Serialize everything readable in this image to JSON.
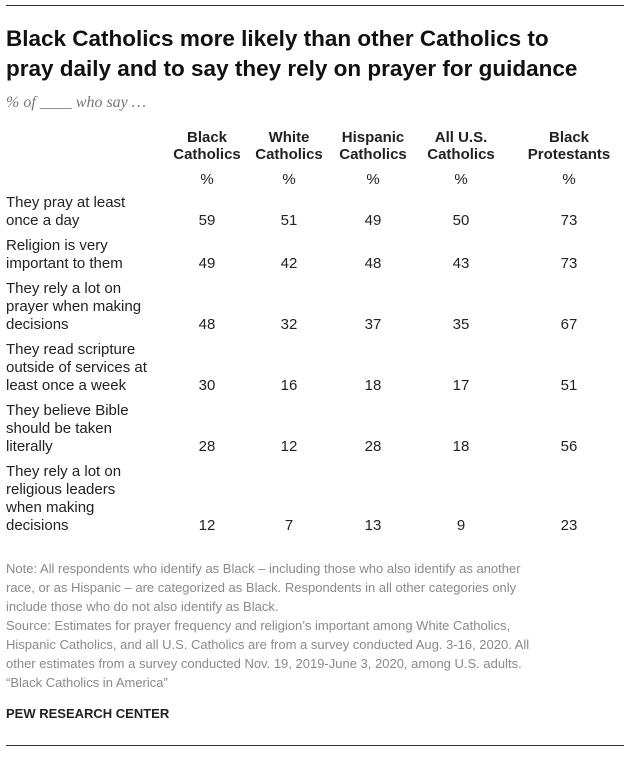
{
  "header": {
    "title": [
      "Black Catholics more likely than other Catholics to",
      "pray daily and to say they rely on prayer for guidance"
    ],
    "subtitle": "% of ____ who say …"
  },
  "table": {
    "columns": [
      [
        "Black",
        "Catholics"
      ],
      [
        "White",
        "Catholics"
      ],
      [
        "Hispanic",
        "Catholics"
      ],
      [
        "All U.S.",
        "Catholics"
      ],
      [
        "Black",
        "Protestants"
      ]
    ],
    "units": [
      "%",
      "%",
      "%",
      "%",
      "%"
    ],
    "rows": [
      {
        "label": [
          "They pray at least",
          "once a day"
        ],
        "values": [
          59,
          51,
          49,
          50,
          73
        ]
      },
      {
        "label": [
          "Religion is very",
          "important to them"
        ],
        "values": [
          49,
          42,
          48,
          43,
          73
        ]
      },
      {
        "label": [
          "They rely a lot on",
          "prayer when making",
          "decisions"
        ],
        "values": [
          48,
          32,
          37,
          35,
          67
        ]
      },
      {
        "label": [
          "They read scripture",
          "outside of services at",
          "least once a week"
        ],
        "values": [
          30,
          16,
          18,
          17,
          51
        ]
      },
      {
        "label": [
          "They believe Bible",
          "should be taken",
          "literally"
        ],
        "values": [
          28,
          12,
          28,
          18,
          56
        ]
      },
      {
        "label": [
          "They rely a lot on",
          "religious leaders",
          "when making",
          "decisions"
        ],
        "values": [
          12,
          7,
          13,
          9,
          23
        ]
      }
    ]
  },
  "notes": [
    "Note: All respondents who identify as Black – including those who also identify as another",
    "race, or as Hispanic – are categorized as Black. Respondents in all other categories only",
    "include those who do not also identify as Black.",
    "Source: Estimates for prayer frequency and religion’s important among White Catholics,",
    "Hispanic Catholics, and all U.S. Catholics are from a survey conducted Aug. 3-16, 2020. All",
    "other estimates from a survey conducted Nov. 19, 2019-June 3, 2020, among U.S. adults.",
    "“Black Catholics in America”"
  ],
  "footer": "PEW RESEARCH CENTER"
}
